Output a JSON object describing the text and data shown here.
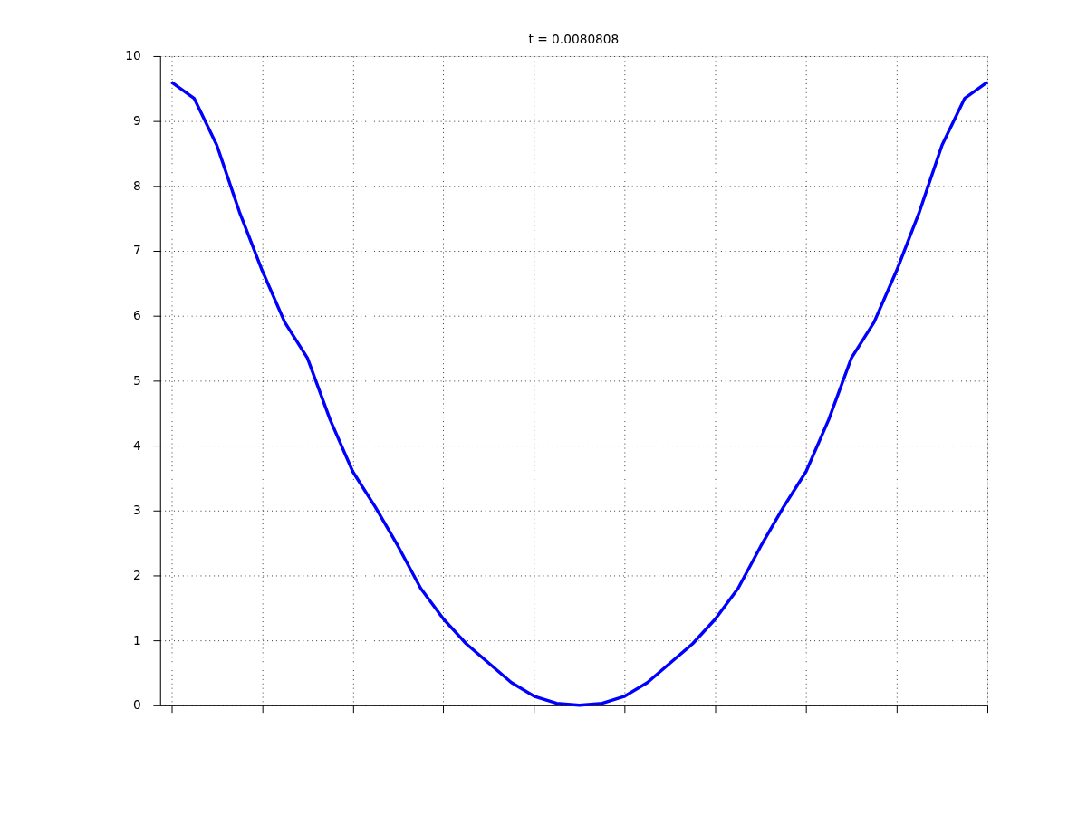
{
  "chart_data": {
    "type": "line",
    "title": "t = 0.0080808",
    "categories": [
      null,
      null,
      null,
      null,
      null,
      null,
      null,
      null,
      null,
      null,
      null,
      null,
      null,
      null,
      null,
      null,
      null,
      null,
      null,
      null,
      null,
      null,
      null,
      null,
      null,
      null,
      null,
      null,
      null,
      null,
      null,
      null,
      null,
      null,
      null,
      null,
      null
    ],
    "series": [
      {
        "color": "#0000ff",
        "values": [
          9.6,
          9.35,
          8.63,
          7.6,
          6.7,
          5.9,
          5.35,
          4.4,
          3.6,
          3.05,
          2.45,
          1.8,
          1.33,
          0.95,
          0.65,
          0.35,
          0.14,
          0.03,
          0.0,
          0.03,
          0.14,
          0.35,
          0.65,
          0.95,
          1.33,
          1.8,
          2.45,
          3.05,
          3.6,
          4.4,
          5.35,
          5.9,
          6.7,
          7.6,
          8.63,
          9.35,
          9.6
        ]
      }
    ],
    "ylim": [
      0,
      10
    ],
    "yticks": [
      0,
      1,
      2,
      3,
      4,
      5,
      6,
      7,
      8,
      9,
      10
    ],
    "grid": true,
    "marker": "none",
    "line_style": "solid",
    "tick_labels": "y"
  }
}
